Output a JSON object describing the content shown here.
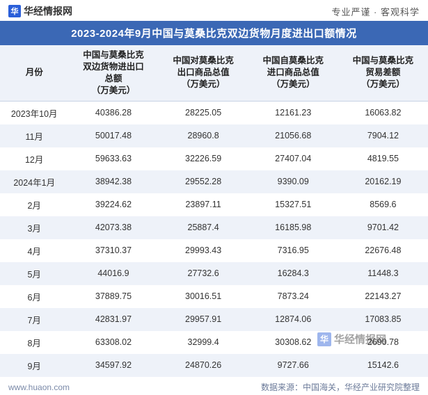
{
  "header": {
    "logo_glyph": "华",
    "logo_text": "华经情报网",
    "tagline": "专业严谨 · 客观科学"
  },
  "title": "2023-2024年9月中国与莫桑比克双边货物月度进出口额情况",
  "table": {
    "columns": [
      "月份",
      "中国与莫桑比克\n双边货物进出口\n总额\n（万美元）",
      "中国对莫桑比克\n出口商品总值\n（万美元）",
      "中国自莫桑比克\n进口商品总值\n（万美元）",
      "中国与莫桑比克\n贸易差额\n（万美元）"
    ],
    "rows": [
      [
        "2023年10月",
        "40386.28",
        "28225.05",
        "12161.23",
        "16063.82"
      ],
      [
        "11月",
        "50017.48",
        "28960.8",
        "21056.68",
        "7904.12"
      ],
      [
        "12月",
        "59633.63",
        "32226.59",
        "27407.04",
        "4819.55"
      ],
      [
        "2024年1月",
        "38942.38",
        "29552.28",
        "9390.09",
        "20162.19"
      ],
      [
        "2月",
        "39224.62",
        "23897.11",
        "15327.51",
        "8569.6"
      ],
      [
        "3月",
        "42073.38",
        "25887.4",
        "16185.98",
        "9701.42"
      ],
      [
        "4月",
        "37310.37",
        "29993.43",
        "7316.95",
        "22676.48"
      ],
      [
        "5月",
        "44016.9",
        "27732.6",
        "16284.3",
        "11448.3"
      ],
      [
        "6月",
        "37889.75",
        "30016.51",
        "7873.24",
        "22143.27"
      ],
      [
        "7月",
        "42831.97",
        "29957.91",
        "12874.06",
        "17083.85"
      ],
      [
        "8月",
        "63308.02",
        "32999.4",
        "30308.62",
        "2690.78"
      ],
      [
        "9月",
        "34597.92",
        "24870.26",
        "9727.66",
        "15142.6"
      ]
    ]
  },
  "footer": {
    "site": "www.huaon.com",
    "source": "数据来源：中国海关，华经产业研究院整理"
  },
  "watermark": {
    "glyph": "华",
    "text": "华经情报网"
  },
  "styling": {
    "title_bg": "#3b68b5",
    "title_color": "#ffffff",
    "header_row_bg": "#eef2f9",
    "row_odd_bg": "#ffffff",
    "row_even_bg": "#eef2f9",
    "text_color": "#333333",
    "footer_color": "#6b7a99",
    "logo_bg": "#2b5fd9",
    "title_fontsize": 15,
    "body_fontsize": 12.5,
    "footer_fontsize": 12
  }
}
